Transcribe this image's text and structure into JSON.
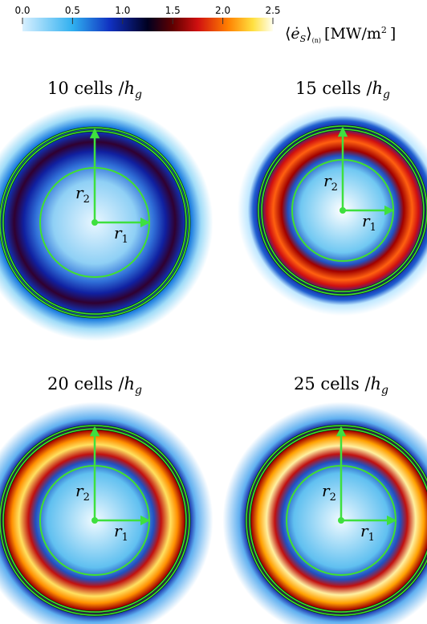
{
  "colorbar": {
    "range": [
      0,
      2.5
    ],
    "ticks": [
      {
        "value": 0,
        "label": "0.0"
      },
      {
        "value": 0.5,
        "label": "0.5"
      },
      {
        "value": 1,
        "label": "1.0"
      },
      {
        "value": 1.5,
        "label": "1.5"
      },
      {
        "value": 2,
        "label": "2.0"
      },
      {
        "value": 2.5,
        "label": "2.5"
      }
    ],
    "label": {
      "open": "⟨",
      "symbol": "ė",
      "sub": "S",
      "close": "⟩",
      "sub2": "(n)",
      "unit": "[MW/m",
      "sup": "2",
      "end": "]"
    }
  },
  "panels": [
    {
      "title": "10 cells /",
      "title_var": "h",
      "title_sub": "g",
      "r2": "r",
      "r2_sub": "2",
      "r1": "r",
      "r1_sub": "1"
    },
    {
      "title": "15 cells /",
      "title_var": "h",
      "title_sub": "g",
      "r2": "r",
      "r2_sub": "2",
      "r1": "r",
      "r1_sub": "1"
    },
    {
      "title": "20 cells /",
      "title_var": "h",
      "title_sub": "g",
      "r2": "r",
      "r2_sub": "2",
      "r1": "r",
      "r1_sub": "1"
    },
    {
      "title": "25 cells /",
      "title_var": "h",
      "title_sub": "g",
      "r2": "r",
      "r2_sub": "2",
      "r1": "r",
      "r1_sub": "1"
    }
  ]
}
